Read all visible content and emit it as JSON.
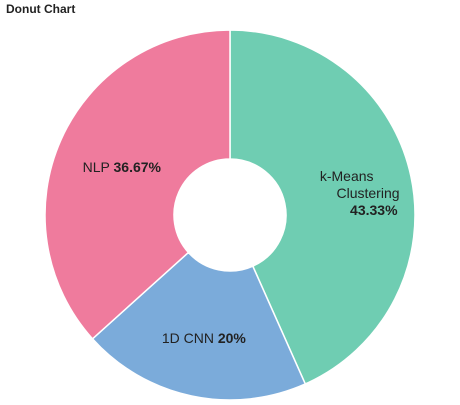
{
  "title": "Donut Chart",
  "chart_data": {
    "type": "pie",
    "donut": true,
    "title": "Donut Chart",
    "slices": [
      {
        "label": "k-Means Clustering",
        "label_lines": [
          "k-Means",
          "Clustering"
        ],
        "value": 43.33,
        "display": "43.33%",
        "color": "#6fcdb2"
      },
      {
        "label": "1D CNN",
        "label_lines": [
          "1D CNN"
        ],
        "value": 20,
        "display": "20%",
        "color": "#7babda"
      },
      {
        "label": "NLP",
        "label_lines": [
          "NLP"
        ],
        "value": 36.67,
        "display": "36.67%",
        "color": "#ef7b9d"
      }
    ],
    "start_angle_deg": 0,
    "direction": "clockwise"
  }
}
